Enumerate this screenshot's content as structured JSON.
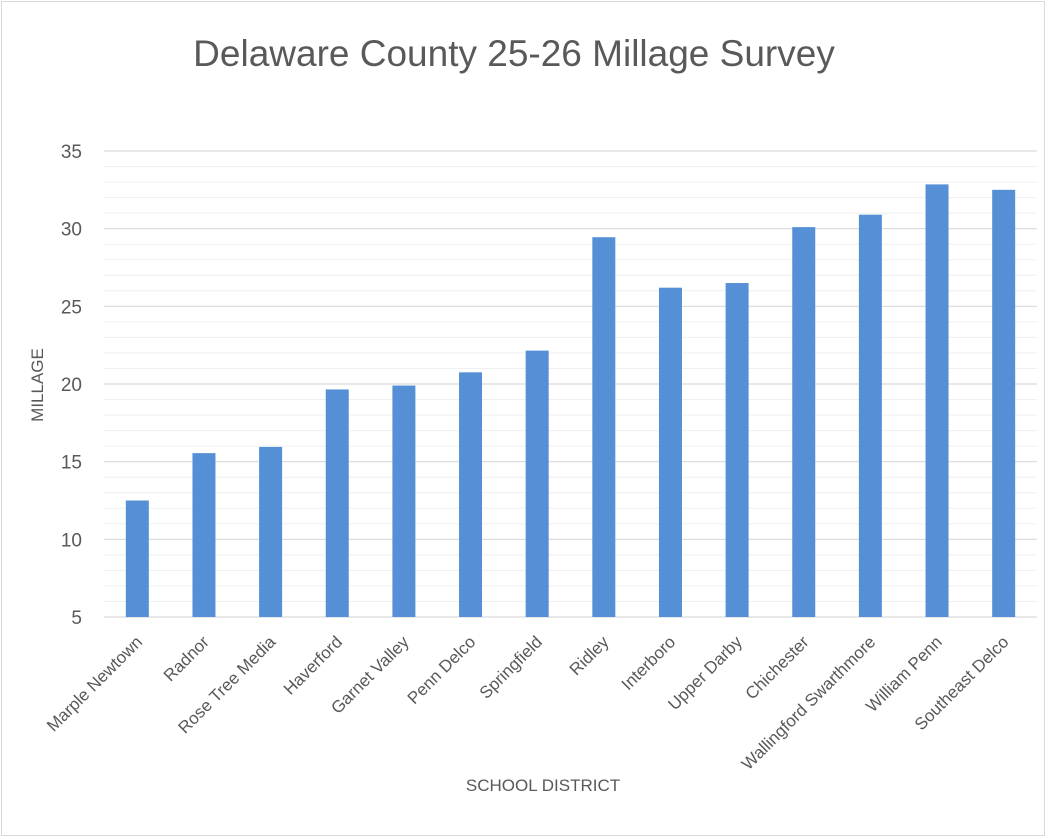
{
  "chart_data": {
    "type": "bar",
    "title": "Delaware County 25-26 Millage Survey",
    "xlabel": "SCHOOL DISTRICT",
    "ylabel": "MILLAGE",
    "ylim": [
      5,
      35
    ],
    "yticks": [
      5,
      10,
      15,
      20,
      25,
      30,
      35
    ],
    "grid": true,
    "legend": "none",
    "categories": [
      "Marple Newtown",
      "Radnor",
      "Rose Tree Media",
      "Haverford",
      "Garnet Valley",
      "Penn Delco",
      "Springfield",
      "Ridley",
      "Interboro",
      "Upper Darby",
      "Chichester",
      "Wallingford Swarthmore",
      "William Penn",
      "Southeast Delco"
    ],
    "values": [
      12.5,
      15.55,
      15.95,
      19.65,
      19.9,
      20.75,
      22.15,
      29.45,
      26.2,
      26.5,
      30.1,
      30.9,
      32.85,
      32.5
    ],
    "colors": {
      "bar": "#5590d6",
      "grid": "#d9d9d9",
      "text": "#595959"
    }
  }
}
